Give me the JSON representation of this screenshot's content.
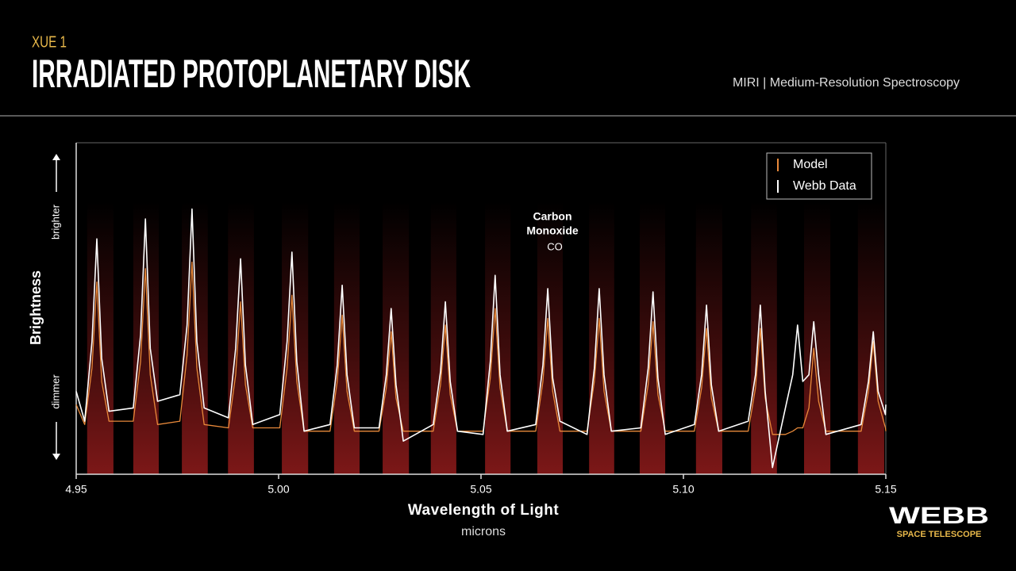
{
  "header": {
    "eyebrow": "XUE 1",
    "title": "IRRADIATED PROTOPLANETARY DISK",
    "instrument": "MIRI | Medium-Resolution Spectroscopy"
  },
  "logo": {
    "name": "WEBB",
    "subtitle": "SPACE TELESCOPE"
  },
  "chart_data": {
    "type": "line",
    "x_label": "Wavelength of Light",
    "x_unit": "microns",
    "y_label": "Brightness",
    "y_high_label": "brighter",
    "y_low_label": "dimmer",
    "annotation": {
      "lines": [
        "Carbon",
        "Monoxide"
      ],
      "formula": "CO"
    },
    "xlim": [
      4.95,
      5.15
    ],
    "xticks": [
      4.95,
      {
        "value": 5,
        "label": "5.00"
      },
      5.05,
      {
        "value": 5.1,
        "label": "5.10"
      },
      5.15
    ],
    "ylim": [
      0,
      1
    ],
    "legend": "top-right",
    "bands_color": "#8a1a1a",
    "bands": [
      [
        4.9527,
        4.9592
      ],
      [
        4.9641,
        4.9704
      ],
      [
        4.9761,
        4.9825
      ],
      [
        4.9875,
        4.9939
      ],
      [
        5.0008,
        5.0073
      ],
      [
        5.0137,
        5.02
      ],
      [
        5.0257,
        5.0322
      ],
      [
        5.0376,
        5.0439
      ],
      [
        5.051,
        5.0573
      ],
      [
        5.0639,
        5.0702
      ],
      [
        5.0767,
        5.0829
      ],
      [
        5.0892,
        5.0955
      ],
      [
        5.1031,
        5.1096
      ],
      [
        5.1167,
        5.1231
      ],
      [
        5.1298,
        5.1363
      ],
      [
        5.1431,
        5.1496
      ]
    ],
    "x": [
      4.95,
      4.9521,
      4.9539,
      4.9551,
      4.9563,
      4.9581,
      4.9641,
      4.9659,
      4.9671,
      4.9683,
      4.9701,
      4.9756,
      4.9774,
      4.9786,
      4.9798,
      4.9816,
      4.9876,
      4.9894,
      4.9906,
      4.9918,
      4.9936,
      5.0003,
      5.0021,
      5.0033,
      5.0045,
      5.0063,
      5.0127,
      5.0145,
      5.0157,
      5.0169,
      5.0187,
      5.0248,
      5.0266,
      5.0278,
      5.029,
      5.0308,
      5.0382,
      5.04,
      5.0412,
      5.0424,
      5.0442,
      5.0505,
      5.0523,
      5.0535,
      5.0547,
      5.0565,
      5.0635,
      5.0653,
      5.0665,
      5.0677,
      5.0695,
      5.0762,
      5.078,
      5.0792,
      5.0804,
      5.0822,
      5.0895,
      5.0913,
      5.0925,
      5.0937,
      5.0955,
      5.1027,
      5.1045,
      5.1057,
      5.1069,
      5.1087,
      5.116,
      5.1178,
      5.119,
      5.1202,
      5.122,
      5.1252,
      5.127,
      5.1282,
      5.1295,
      5.131,
      5.1322,
      5.1334,
      5.1352,
      5.1439,
      5.1457,
      5.1469,
      5.1481,
      5.1499,
      5.15
    ],
    "series": [
      {
        "name": "Model",
        "color": "#e8893a",
        "values": [
          0.21,
          0.15,
          0.32,
          0.58,
          0.28,
          0.16,
          0.16,
          0.34,
          0.62,
          0.3,
          0.15,
          0.16,
          0.36,
          0.64,
          0.32,
          0.15,
          0.14,
          0.3,
          0.52,
          0.27,
          0.14,
          0.14,
          0.32,
          0.54,
          0.28,
          0.13,
          0.13,
          0.28,
          0.48,
          0.25,
          0.13,
          0.13,
          0.26,
          0.43,
          0.23,
          0.13,
          0.13,
          0.27,
          0.45,
          0.24,
          0.13,
          0.13,
          0.29,
          0.5,
          0.26,
          0.13,
          0.13,
          0.28,
          0.47,
          0.25,
          0.13,
          0.13,
          0.28,
          0.47,
          0.25,
          0.13,
          0.13,
          0.27,
          0.46,
          0.24,
          0.13,
          0.13,
          0.26,
          0.44,
          0.23,
          0.13,
          0.13,
          0.26,
          0.44,
          0.23,
          0.12,
          0.12,
          0.13,
          0.14,
          0.14,
          0.2,
          0.38,
          0.22,
          0.13,
          0.13,
          0.25,
          0.4,
          0.22,
          0.14,
          0.13
        ]
      },
      {
        "name": "Webb Data",
        "color": "#ffffff",
        "values": [
          0.25,
          0.16,
          0.4,
          0.71,
          0.35,
          0.19,
          0.2,
          0.42,
          0.77,
          0.38,
          0.22,
          0.24,
          0.45,
          0.8,
          0.4,
          0.2,
          0.17,
          0.38,
          0.65,
          0.33,
          0.15,
          0.18,
          0.4,
          0.67,
          0.34,
          0.13,
          0.15,
          0.33,
          0.57,
          0.3,
          0.14,
          0.14,
          0.3,
          0.5,
          0.27,
          0.1,
          0.15,
          0.31,
          0.52,
          0.28,
          0.13,
          0.12,
          0.34,
          0.6,
          0.3,
          0.13,
          0.15,
          0.33,
          0.56,
          0.29,
          0.16,
          0.12,
          0.32,
          0.56,
          0.3,
          0.13,
          0.14,
          0.32,
          0.55,
          0.29,
          0.12,
          0.15,
          0.3,
          0.51,
          0.27,
          0.13,
          0.16,
          0.3,
          0.51,
          0.25,
          0.02,
          0.2,
          0.3,
          0.45,
          0.28,
          0.3,
          0.46,
          0.3,
          0.12,
          0.15,
          0.28,
          0.43,
          0.25,
          0.18,
          0.21
        ]
      }
    ]
  }
}
